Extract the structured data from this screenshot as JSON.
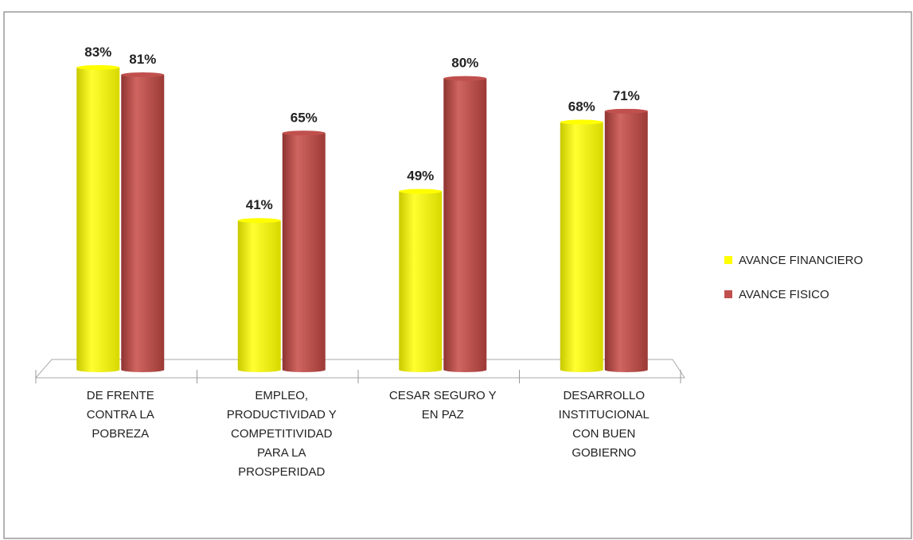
{
  "chart_data": {
    "type": "bar",
    "categories": [
      "DE FRENTE CONTRA LA POBREZA",
      "EMPLEO, PRODUCTIVIDAD Y COMPETITIVIDAD PARA LA PROSPERIDAD",
      "CESAR SEGURO Y EN PAZ",
      "DESARROLLO INSTITUCIONAL CON BUEN GOBIERNO"
    ],
    "series": [
      {
        "name": "AVANCE FINANCIERO",
        "color": "#ffff00",
        "values": [
          83,
          41,
          49,
          68
        ],
        "value_labels": [
          "83%",
          "41%",
          "49%",
          "68%"
        ]
      },
      {
        "name": "AVANCE FISICO",
        "color": "#c0504d",
        "values": [
          81,
          65,
          80,
          71
        ],
        "value_labels": [
          "81%",
          "65%",
          "80%",
          "71%"
        ]
      }
    ],
    "legend": "right"
  }
}
